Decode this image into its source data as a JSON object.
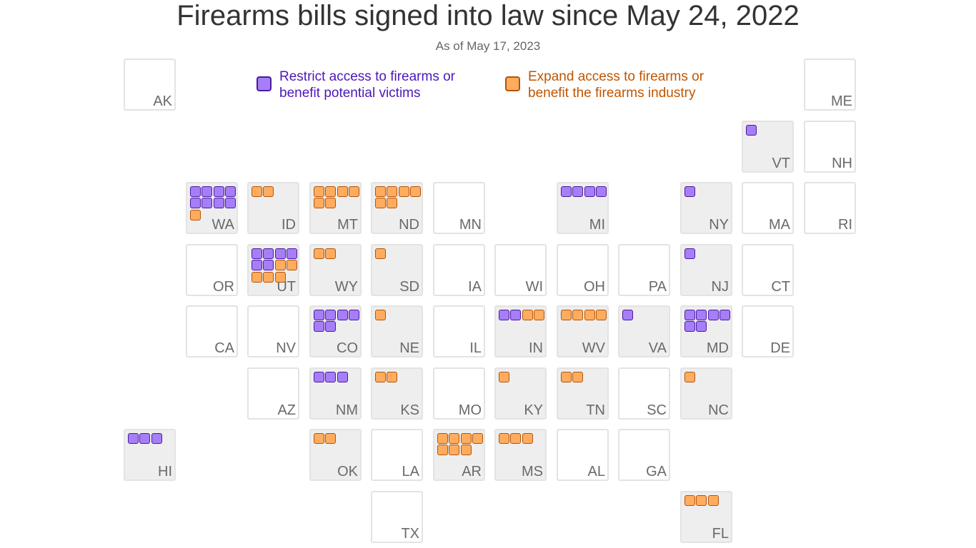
{
  "title": "Firearms bills signed into law since May 24, 2022",
  "subtitle": "As of May 17, 2023",
  "legend": {
    "restrict": "Restrict access to firearms or benefit potential victims",
    "restrict_line1": "Restrict access to firearms or",
    "restrict_line2": "benefit potential victims",
    "expand": "Expand access to firearms or benefit the firearms industry",
    "expand_line1": "Expand access to firearms or",
    "expand_line2": "benefit the firearms industry"
  },
  "colors": {
    "restrict_fill": "#a67ef7",
    "restrict_border": "#4b1a9c",
    "expand_fill": "#ffac5e",
    "expand_border": "#b1540b",
    "tile_with_bills": "#eeeeee",
    "tile_empty": "#ffffff"
  },
  "chart_data": {
    "type": "tile-grid-map",
    "title": "Firearms bills signed into law since May 24, 2022",
    "subtitle": "As of May 17, 2023",
    "series": [
      {
        "name": "Restrict access to firearms or benefit potential victims",
        "key": "restrict"
      },
      {
        "name": "Expand access to firearms or benefit the firearms industry",
        "key": "expand"
      }
    ],
    "states": [
      {
        "state": "AK",
        "row": 0,
        "col": 0,
        "restrict": 0,
        "expand": 0
      },
      {
        "state": "ME",
        "row": 0,
        "col": 11,
        "restrict": 0,
        "expand": 0
      },
      {
        "state": "VT",
        "row": 1,
        "col": 10,
        "restrict": 1,
        "expand": 0
      },
      {
        "state": "NH",
        "row": 1,
        "col": 11,
        "restrict": 0,
        "expand": 0
      },
      {
        "state": "WA",
        "row": 2,
        "col": 1,
        "restrict": 8,
        "expand": 1
      },
      {
        "state": "ID",
        "row": 2,
        "col": 2,
        "restrict": 0,
        "expand": 2
      },
      {
        "state": "MT",
        "row": 2,
        "col": 3,
        "restrict": 0,
        "expand": 6
      },
      {
        "state": "ND",
        "row": 2,
        "col": 4,
        "restrict": 0,
        "expand": 6
      },
      {
        "state": "MN",
        "row": 2,
        "col": 5,
        "restrict": 0,
        "expand": 0
      },
      {
        "state": "MI",
        "row": 2,
        "col": 7,
        "restrict": 4,
        "expand": 0
      },
      {
        "state": "NY",
        "row": 2,
        "col": 9,
        "restrict": 1,
        "expand": 0
      },
      {
        "state": "MA",
        "row": 2,
        "col": 10,
        "restrict": 0,
        "expand": 0
      },
      {
        "state": "RI",
        "row": 2,
        "col": 11,
        "restrict": 0,
        "expand": 0
      },
      {
        "state": "OR",
        "row": 3,
        "col": 1,
        "restrict": 0,
        "expand": 0
      },
      {
        "state": "UT",
        "row": 3,
        "col": 2,
        "restrict": 6,
        "expand": 5
      },
      {
        "state": "WY",
        "row": 3,
        "col": 3,
        "restrict": 0,
        "expand": 2
      },
      {
        "state": "SD",
        "row": 3,
        "col": 4,
        "restrict": 0,
        "expand": 1
      },
      {
        "state": "IA",
        "row": 3,
        "col": 5,
        "restrict": 0,
        "expand": 0
      },
      {
        "state": "WI",
        "row": 3,
        "col": 6,
        "restrict": 0,
        "expand": 0
      },
      {
        "state": "OH",
        "row": 3,
        "col": 7,
        "restrict": 0,
        "expand": 0
      },
      {
        "state": "PA",
        "row": 3,
        "col": 8,
        "restrict": 0,
        "expand": 0
      },
      {
        "state": "NJ",
        "row": 3,
        "col": 9,
        "restrict": 1,
        "expand": 0
      },
      {
        "state": "CT",
        "row": 3,
        "col": 10,
        "restrict": 0,
        "expand": 0
      },
      {
        "state": "CA",
        "row": 4,
        "col": 1,
        "restrict": 0,
        "expand": 0
      },
      {
        "state": "NV",
        "row": 4,
        "col": 2,
        "restrict": 0,
        "expand": 0
      },
      {
        "state": "CO",
        "row": 4,
        "col": 3,
        "restrict": 6,
        "expand": 0
      },
      {
        "state": "NE",
        "row": 4,
        "col": 4,
        "restrict": 0,
        "expand": 1
      },
      {
        "state": "IL",
        "row": 4,
        "col": 5,
        "restrict": 0,
        "expand": 0
      },
      {
        "state": "IN",
        "row": 4,
        "col": 6,
        "restrict": 2,
        "expand": 2
      },
      {
        "state": "WV",
        "row": 4,
        "col": 7,
        "restrict": 0,
        "expand": 4
      },
      {
        "state": "VA",
        "row": 4,
        "col": 8,
        "restrict": 1,
        "expand": 0
      },
      {
        "state": "MD",
        "row": 4,
        "col": 9,
        "restrict": 6,
        "expand": 0
      },
      {
        "state": "DE",
        "row": 4,
        "col": 10,
        "restrict": 0,
        "expand": 0
      },
      {
        "state": "AZ",
        "row": 5,
        "col": 2,
        "restrict": 0,
        "expand": 0
      },
      {
        "state": "NM",
        "row": 5,
        "col": 3,
        "restrict": 3,
        "expand": 0
      },
      {
        "state": "KS",
        "row": 5,
        "col": 4,
        "restrict": 0,
        "expand": 2
      },
      {
        "state": "MO",
        "row": 5,
        "col": 5,
        "restrict": 0,
        "expand": 0
      },
      {
        "state": "KY",
        "row": 5,
        "col": 6,
        "restrict": 0,
        "expand": 1
      },
      {
        "state": "TN",
        "row": 5,
        "col": 7,
        "restrict": 0,
        "expand": 2
      },
      {
        "state": "SC",
        "row": 5,
        "col": 8,
        "restrict": 0,
        "expand": 0
      },
      {
        "state": "NC",
        "row": 5,
        "col": 9,
        "restrict": 0,
        "expand": 1
      },
      {
        "state": "HI",
        "row": 6,
        "col": 0,
        "restrict": 3,
        "expand": 0
      },
      {
        "state": "OK",
        "row": 6,
        "col": 3,
        "restrict": 0,
        "expand": 2
      },
      {
        "state": "LA",
        "row": 6,
        "col": 4,
        "restrict": 0,
        "expand": 0
      },
      {
        "state": "AR",
        "row": 6,
        "col": 5,
        "restrict": 0,
        "expand": 7
      },
      {
        "state": "MS",
        "row": 6,
        "col": 6,
        "restrict": 0,
        "expand": 3
      },
      {
        "state": "AL",
        "row": 6,
        "col": 7,
        "restrict": 0,
        "expand": 0
      },
      {
        "state": "GA",
        "row": 6,
        "col": 8,
        "restrict": 0,
        "expand": 0
      },
      {
        "state": "TX",
        "row": 7,
        "col": 4,
        "restrict": 0,
        "expand": 0
      },
      {
        "state": "FL",
        "row": 7,
        "col": 9,
        "restrict": 0,
        "expand": 3
      }
    ]
  }
}
